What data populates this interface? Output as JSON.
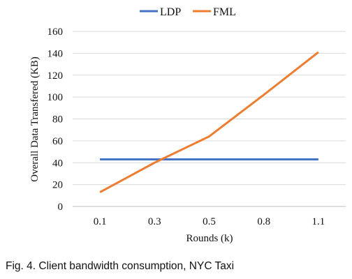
{
  "chart_data": {
    "type": "line",
    "title": "",
    "xlabel": "Rounds (k)",
    "ylabel": "Overall Data Transfered (KB)",
    "categories": [
      "0.1",
      "0.3",
      "0.5",
      "0.8",
      "1.1"
    ],
    "ylim": [
      0,
      160
    ],
    "yticks": [
      0,
      20,
      40,
      60,
      80,
      100,
      120,
      140,
      160
    ],
    "grid": true,
    "legend_position": "top-center",
    "series": [
      {
        "name": "LDP",
        "color": "#4472C4",
        "values": [
          43,
          43,
          43,
          43,
          43
        ]
      },
      {
        "name": "FML",
        "color": "#ED7D31",
        "values": [
          13,
          40,
          64,
          102,
          141
        ]
      }
    ]
  },
  "caption": "Fig. 4. Client bandwidth consumption, NYC Taxi"
}
